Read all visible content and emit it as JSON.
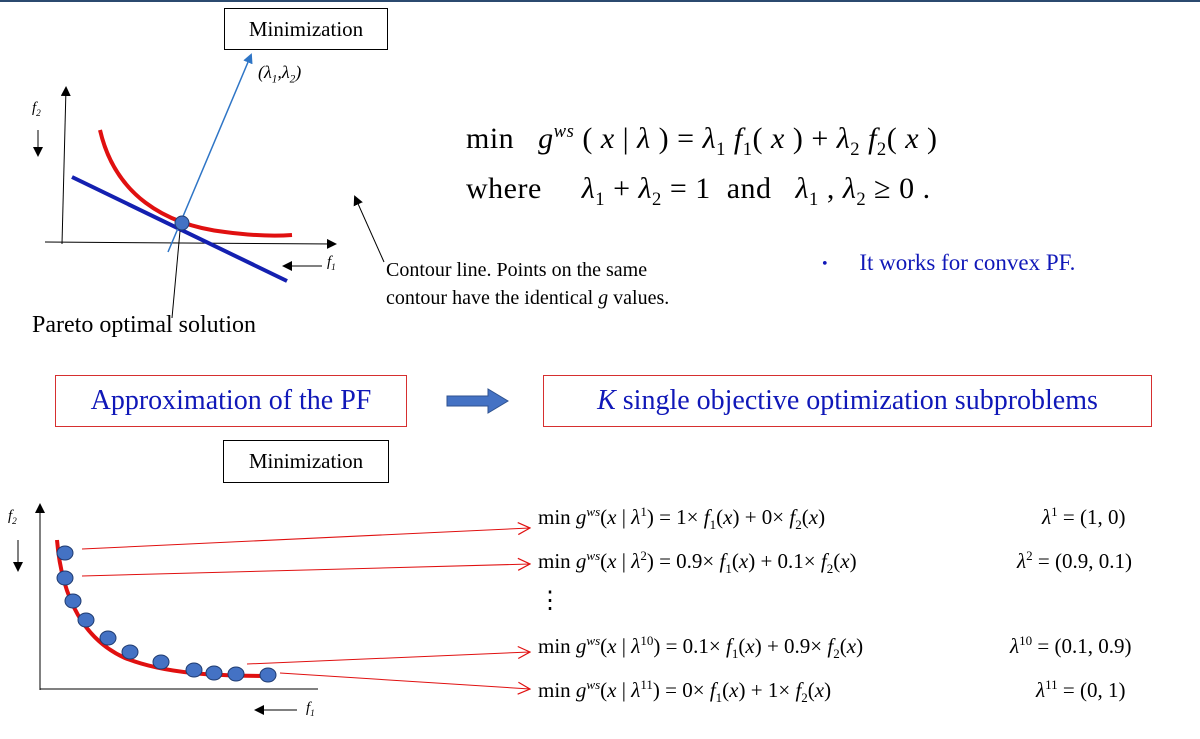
{
  "top_label": "Minimization",
  "bottom_label": "Minimization",
  "top_diagram": {
    "f2_label": "f",
    "f2_sub": "2",
    "f1_label": "f",
    "f1_sub": "1",
    "weight_label": "(λ1,λ2)",
    "pareto_label": "Pareto optimal solution",
    "contour_line1": "Contour line. Points on the same",
    "contour_line2_a": "contour have the identical ",
    "contour_line2_g": "g",
    "contour_line2_b": " values."
  },
  "formula": {
    "line1": "min   g ws ( x | λ ) = λ1 f1 ( x ) + λ2 f2 ( x )",
    "line2": "where    λ1 + λ2 = 1  and   λ1 , λ2 ≥ 0 ."
  },
  "bullet": "It works for convex PF.",
  "approx_box": "Approximation of the PF",
  "subproblem_box_k": "K",
  "subproblem_box_rest": " single objective optimization subproblems",
  "bottom_diagram": {
    "f2_label": "f",
    "f2_sub": "2",
    "f1_label": "f",
    "f1_sub": "1"
  },
  "equations": [
    {
      "eq": "min g ws (x | λ1) = 1× f1(x) + 0× f2(x)",
      "weight": "λ1 = (1, 0)"
    },
    {
      "eq": "min g ws (x | λ2) = 0.9× f1(x) + 0.1× f2(x)",
      "weight": "λ2 = (0.9, 0.1)"
    },
    {
      "eq": "⋮",
      "weight": ""
    },
    {
      "eq": "min g ws (x | λ10) = 0.1× f1(x) + 0.9× f2(x)",
      "weight": "λ10 = (0.1, 0.9)"
    },
    {
      "eq": "min g ws (x | λ11) = 0× f1(x) + 1× f2(x)",
      "weight": "λ11 = (0, 1)"
    }
  ],
  "colors": {
    "curve": "#e01010",
    "contour": "#1420b0",
    "point": "#4472c4",
    "weight_arrow": "#2e75c6",
    "box_text": "#1018b8",
    "box_border": "#d62f2f",
    "big_arrow": "#4472c4"
  }
}
